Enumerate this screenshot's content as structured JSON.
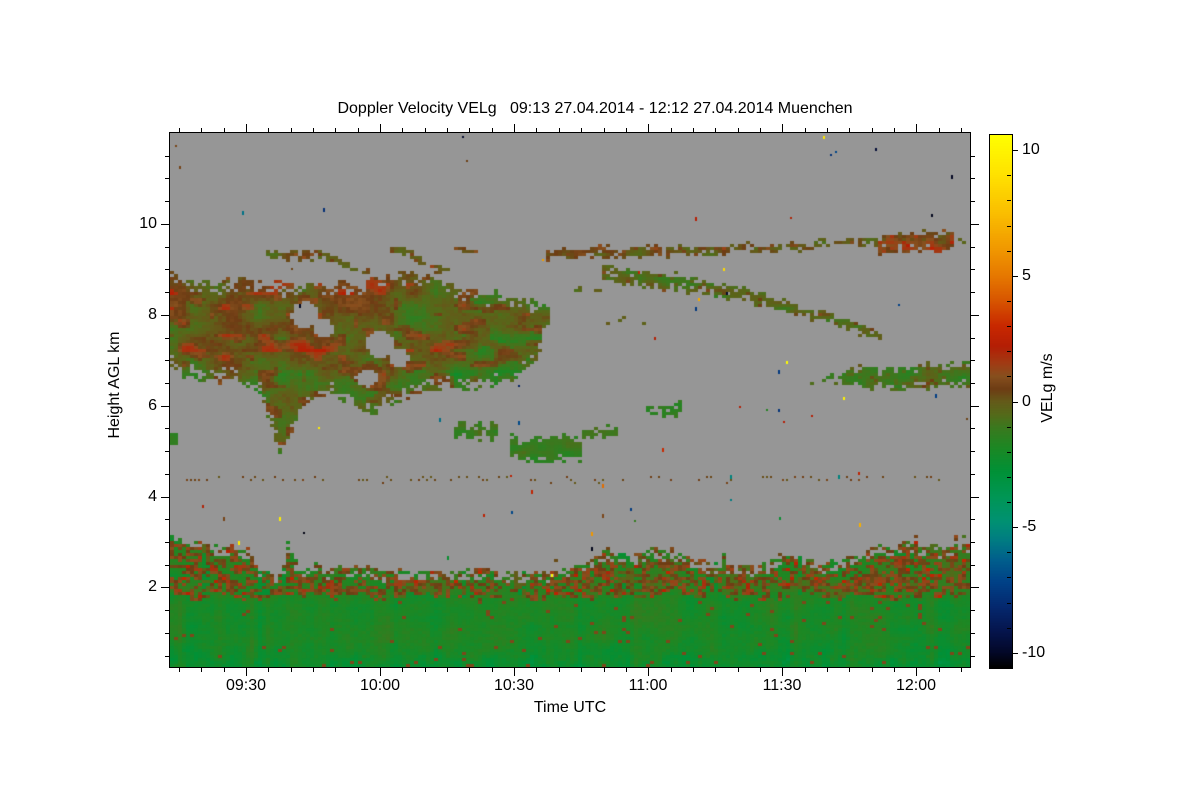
{
  "figure": {
    "background": "#ffffff"
  },
  "chart_data": {
    "type": "heatmap",
    "title": "Doppler Velocity VELg   09:13 27.04.2014 - 12:12 27.04.2014 Muenchen",
    "xlabel": "Time UTC",
    "ylabel": "Height AGL km",
    "station": "Muenchen",
    "time_start": "09:13 27.04.2014",
    "time_end": "12:12 27.04.2014",
    "x_axis": {
      "start_hour": 9.2167,
      "end_hour": 12.2,
      "major_ticks": [
        {
          "label": "09:30",
          "hour": 9.5
        },
        {
          "label": "10:00",
          "hour": 10
        },
        {
          "label": "10:30",
          "hour": 10.5
        },
        {
          "label": "11:00",
          "hour": 11
        },
        {
          "label": "11:30",
          "hour": 11.5
        },
        {
          "label": "12:00",
          "hour": 12
        }
      ],
      "minor_step_minutes": 5
    },
    "y_axis": {
      "min_km": 0.25,
      "max_km": 12,
      "major_ticks": [
        {
          "label": "2",
          "km": 2
        },
        {
          "label": "4",
          "km": 4
        },
        {
          "label": "6",
          "km": 6
        },
        {
          "label": "8",
          "km": 8
        },
        {
          "label": "10",
          "km": 10
        }
      ],
      "minor_step_km": 0.5
    },
    "colorbar": {
      "label": "VELg m/s",
      "min": -10.6,
      "max": 10.6,
      "major_ticks": [
        {
          "label": "10",
          "v": 10
        },
        {
          "label": "5",
          "v": 5
        },
        {
          "label": "0",
          "v": 0
        },
        {
          "label": "-5",
          "v": -5
        },
        {
          "label": "-10",
          "v": -10
        }
      ],
      "minor_step": 1,
      "stops": [
        [
          10.6,
          "#ffff00"
        ],
        [
          9,
          "#ffe100"
        ],
        [
          7.5,
          "#fabe00"
        ],
        [
          6,
          "#f09600"
        ],
        [
          5,
          "#e67800"
        ],
        [
          4,
          "#d75500"
        ],
        [
          3,
          "#c82800"
        ],
        [
          2.2,
          "#b41e05"
        ],
        [
          1.5,
          "#a03c14"
        ],
        [
          1,
          "#86501e"
        ],
        [
          0.5,
          "#6e3c14"
        ],
        [
          0,
          "#645a19"
        ],
        [
          -0.5,
          "#556919"
        ],
        [
          -1,
          "#3c781e"
        ],
        [
          -1.8,
          "#1e8723"
        ],
        [
          -2.8,
          "#009137"
        ],
        [
          -3.8,
          "#009655"
        ],
        [
          -4.8,
          "#009173"
        ],
        [
          -5.5,
          "#007d82"
        ],
        [
          -6.3,
          "#005f8c"
        ],
        [
          -7.2,
          "#004187"
        ],
        [
          -8.2,
          "#05286e"
        ],
        [
          -9.2,
          "#05144b"
        ],
        [
          -10,
          "#030828"
        ],
        [
          -10.6,
          "#000000"
        ]
      ]
    },
    "no_data_color": "#969696",
    "regions": {
      "bottom_band": {
        "top_pts": [
          [
            9.217,
            3.0
          ],
          [
            9.3,
            3.05
          ],
          [
            9.42,
            2.95
          ],
          [
            9.5,
            2.9
          ],
          [
            9.55,
            2.4
          ],
          [
            9.62,
            2.25
          ],
          [
            9.66,
            2.8
          ],
          [
            9.71,
            2.4
          ],
          [
            9.8,
            2.35
          ],
          [
            9.9,
            2.5
          ],
          [
            10.0,
            2.4
          ],
          [
            10.2,
            2.35
          ],
          [
            10.4,
            2.4
          ],
          [
            10.6,
            2.3
          ],
          [
            10.75,
            2.5
          ],
          [
            10.85,
            2.85
          ],
          [
            10.95,
            2.75
          ],
          [
            11.05,
            2.85
          ],
          [
            11.15,
            2.7
          ],
          [
            11.25,
            2.5
          ],
          [
            11.35,
            2.45
          ],
          [
            11.45,
            2.6
          ],
          [
            11.55,
            2.8
          ],
          [
            11.63,
            2.55
          ],
          [
            11.72,
            2.6
          ],
          [
            11.8,
            2.85
          ],
          [
            11.95,
            2.95
          ],
          [
            12.1,
            2.9
          ],
          [
            12.2,
            3.0
          ]
        ],
        "mottle_top_km": 1.8,
        "v_green_base": -1.55,
        "v_mottle_peak": 2.2
      },
      "main_cloud": {
        "t0": 9.217,
        "t1": 10.63,
        "top_pts": [
          [
            9.217,
            8.9
          ],
          [
            9.35,
            8.75
          ],
          [
            9.5,
            8.8
          ],
          [
            9.65,
            8.7
          ],
          [
            9.8,
            8.6
          ],
          [
            9.95,
            8.75
          ],
          [
            10.1,
            8.95
          ],
          [
            10.25,
            8.75
          ],
          [
            10.4,
            8.5
          ],
          [
            10.55,
            8.35
          ],
          [
            10.63,
            8.2
          ]
        ],
        "bottom_pts": [
          [
            9.217,
            6.75
          ],
          [
            9.35,
            6.55
          ],
          [
            9.45,
            6.6
          ],
          [
            9.55,
            6.25
          ],
          [
            9.63,
            4.9
          ],
          [
            9.7,
            5.9
          ],
          [
            9.8,
            6.25
          ],
          [
            9.9,
            6.0
          ],
          [
            9.98,
            5.75
          ],
          [
            10.05,
            6.1
          ],
          [
            10.2,
            6.35
          ],
          [
            10.35,
            6.3
          ],
          [
            10.5,
            6.6
          ],
          [
            10.58,
            7.0
          ],
          [
            10.63,
            7.8
          ]
        ],
        "holes": [
          [
            9.72,
            8.0,
            0.05,
            0.28
          ],
          [
            9.79,
            7.7,
            0.035,
            0.22
          ],
          [
            10.0,
            7.35,
            0.05,
            0.3
          ],
          [
            10.07,
            7.05,
            0.035,
            0.2
          ],
          [
            9.95,
            6.6,
            0.04,
            0.18
          ]
        ],
        "v_base": -0.35
      },
      "blobs": [
        [
          10.48,
          10.74,
          4.78,
          5.32,
          -1.2
        ],
        [
          10.27,
          10.42,
          5.25,
          5.6,
          -1.0
        ],
        [
          10.76,
          10.87,
          5.3,
          5.5,
          -1.1
        ],
        [
          10.99,
          11.11,
          5.8,
          6.05,
          -1.2
        ],
        [
          9.217,
          9.25,
          5.15,
          5.45,
          -1.5
        ]
      ],
      "streaks": [
        {
          "pts": [
            [
              9.57,
              9.38
            ],
            [
              9.8,
              9.28
            ]
          ],
          "hw": 0.1,
          "v": -0.1,
          "amp": 0.7,
          "den": 0.75
        },
        {
          "pts": [
            [
              9.82,
              9.2
            ],
            [
              9.96,
              8.95
            ]
          ],
          "hw": 0.07,
          "v": -0.2,
          "amp": 0.6,
          "den": 0.7
        },
        {
          "pts": [
            [
              10.04,
              9.5
            ],
            [
              10.24,
              8.95
            ]
          ],
          "hw": 0.09,
          "v": -0.1,
          "amp": 0.7,
          "den": 0.7
        },
        {
          "pts": [
            [
              10.27,
              9.44
            ],
            [
              10.38,
              9.38
            ]
          ],
          "hw": 0.06,
          "v": 0.0,
          "amp": 0.6,
          "den": 0.5
        },
        {
          "pts": [
            [
              10.62,
              9.32
            ],
            [
              11.03,
              9.42
            ]
          ],
          "hw": 0.11,
          "v": 0.15,
          "amp": 0.85,
          "den": 0.8
        },
        {
          "pts": [
            [
              11.07,
              9.38
            ],
            [
              11.5,
              9.5
            ],
            [
              11.85,
              9.6
            ],
            [
              12.2,
              9.68
            ]
          ],
          "hw": 0.09,
          "v": 0.0,
          "amp": 0.8,
          "den": 0.65
        },
        {
          "pts": [
            [
              11.86,
              9.55
            ],
            [
              12.0,
              9.62
            ],
            [
              12.13,
              9.6
            ]
          ],
          "hw": 0.22,
          "v": 0.7,
          "amp": 1.1,
          "den": 0.85
        },
        {
          "pts": [
            [
              10.83,
              8.95
            ],
            [
              11.1,
              8.7
            ],
            [
              11.35,
              8.45
            ],
            [
              11.6,
              8.05
            ],
            [
              11.85,
              7.55
            ]
          ],
          "hw": 0.19,
          "v": -0.45,
          "amp": 0.8,
          "den": 0.85,
          "taper": 0.5
        },
        {
          "pts": [
            [
              10.7,
              8.6
            ],
            [
              10.82,
              8.48
            ]
          ],
          "hw": 0.08,
          "v": -0.3,
          "amp": 0.6,
          "den": 0.4
        },
        {
          "pts": [
            [
              10.84,
              7.9
            ],
            [
              10.98,
              7.85
            ]
          ],
          "hw": 0.12,
          "v": -0.2,
          "amp": 0.6,
          "den": 0.18
        }
      ],
      "right_layer": {
        "t0": 11.6,
        "t1": 12.2,
        "top_pts": [
          [
            11.6,
            6.6
          ],
          [
            11.7,
            6.65
          ],
          [
            11.8,
            6.9
          ],
          [
            11.95,
            6.8
          ],
          [
            12.05,
            6.95
          ],
          [
            12.2,
            6.9
          ]
        ],
        "bottom_pts": [
          [
            11.6,
            6.5
          ],
          [
            11.7,
            6.45
          ],
          [
            11.85,
            6.35
          ],
          [
            12.2,
            6.4
          ]
        ],
        "v_base": -0.9,
        "sparse_before": 11.72
      },
      "speckle_row": {
        "km": 4.43,
        "t0": 9.28,
        "t1": 12.08,
        "density": 0.42,
        "v_base": 0.3
      },
      "specks": {
        "count": 90,
        "seed": 7
      }
    }
  }
}
